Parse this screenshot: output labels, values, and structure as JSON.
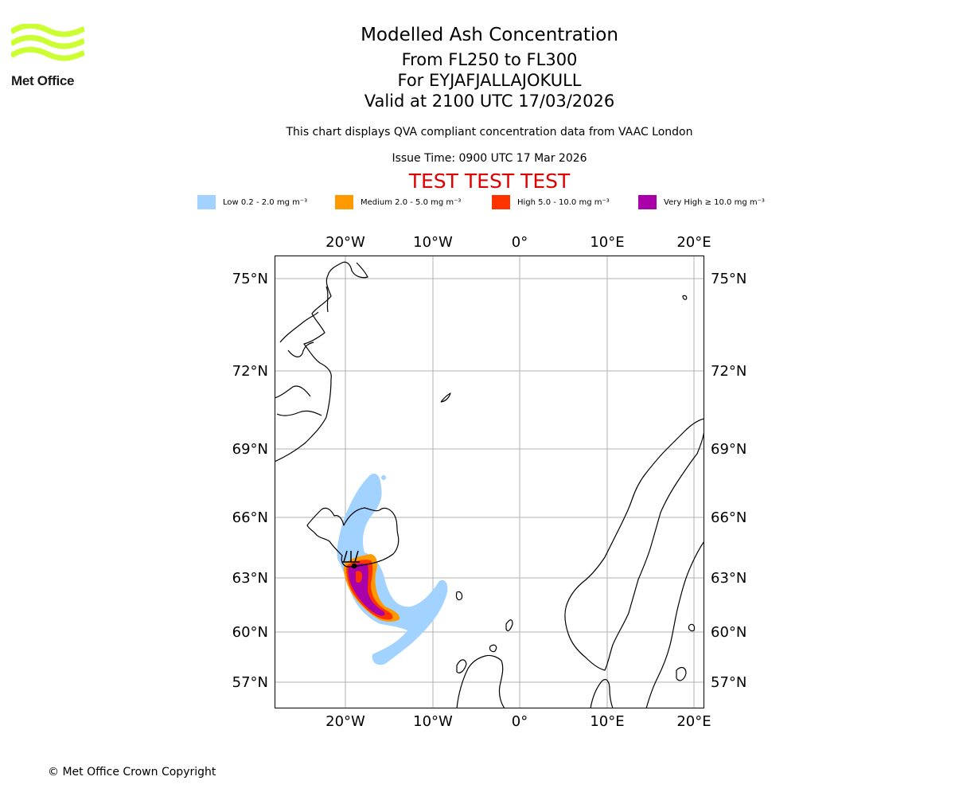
{
  "logo": {
    "text": "Met Office",
    "color": "#ccff33"
  },
  "title": {
    "line1": "Modelled Ash Concentration",
    "line2": "From FL250 to FL300",
    "line3": "For EYJAFJALLAJOKULL",
    "line4": "Valid at 2100 UTC 17/03/2026"
  },
  "description": "This chart displays QVA compliant concentration data from VAAC London",
  "issue_time": "Issue Time: 0900 UTC 17 Mar 2026",
  "test_banner": "TEST TEST TEST",
  "legend": [
    {
      "label": "Low 0.2 - 2.0 mg m⁻³",
      "color": "#a2d2ff"
    },
    {
      "label": "Medium 2.0 - 5.0 mg m⁻³",
      "color": "#ff9900"
    },
    {
      "label": "High 5.0 - 10.0 mg m⁻³",
      "color": "#ff3300"
    },
    {
      "label": "Very High ≥ 10.0 mg m⁻³",
      "color": "#aa00aa"
    }
  ],
  "map": {
    "lon_labels": [
      "20°W",
      "10°W",
      "0°",
      "10°E",
      "20°E"
    ],
    "lat_labels": [
      "75°N",
      "72°N",
      "69°N",
      "66°N",
      "63°N",
      "60°N",
      "57°N"
    ],
    "gridline_color": "#b0b0b0",
    "coastline_color": "#000000",
    "volcano": "EYJAFJALLAJOKULL"
  },
  "copyright": "© Met Office Crown Copyright"
}
